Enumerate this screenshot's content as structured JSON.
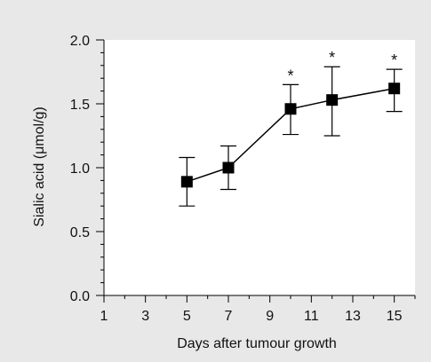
{
  "chart_data": {
    "type": "line",
    "title": "",
    "xlabel": "Days after tumour growth",
    "ylabel": "Sialic acid (μmol/g)",
    "xlim": [
      1,
      16
    ],
    "ylim": [
      0.0,
      2.0
    ],
    "x_tick_labels": [
      "1",
      "3",
      "5",
      "7",
      "9",
      "11",
      "13",
      "15"
    ],
    "x_tick_values": [
      1,
      3,
      5,
      7,
      9,
      11,
      13,
      15
    ],
    "x_minor_tick_values": [
      2,
      4,
      6,
      8,
      10,
      12,
      14,
      16
    ],
    "y_tick_labels": [
      "0.0",
      "0.5",
      "1.0",
      "1.5",
      "2.0"
    ],
    "y_tick_values": [
      0.0,
      0.5,
      1.0,
      1.5,
      2.0
    ],
    "y_minor_step": 0.1,
    "grid": false,
    "marker": "square",
    "line_color": "#000000",
    "background_color": "#e8e8e8",
    "plot_background_color": "#ffffff",
    "series": [
      {
        "x": [
          5,
          7,
          10,
          12,
          15
        ],
        "y": [
          0.89,
          1.0,
          1.46,
          1.53,
          1.62
        ],
        "error_high": [
          1.08,
          1.17,
          1.65,
          1.79,
          1.77
        ],
        "error_low": [
          0.7,
          0.83,
          1.26,
          1.25,
          1.44
        ],
        "significance": [
          "",
          "",
          "*",
          "*",
          "*"
        ]
      }
    ]
  }
}
